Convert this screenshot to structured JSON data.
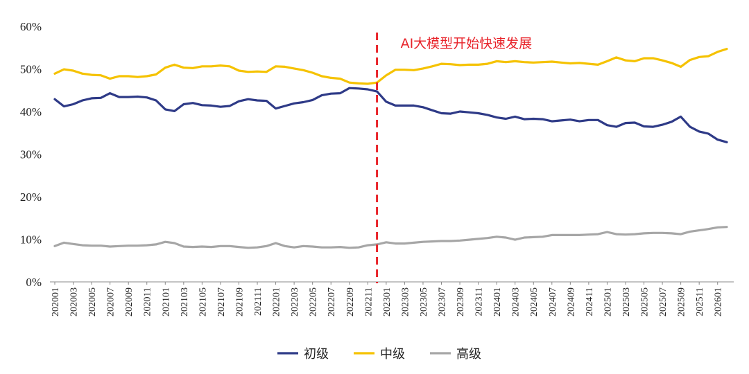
{
  "chart_data": {
    "type": "line",
    "title": "",
    "xlabel": "",
    "ylabel": "",
    "ylim": [
      0,
      60
    ],
    "yticks": [
      0,
      10,
      20,
      30,
      40,
      50,
      60
    ],
    "ytick_labels": [
      "0%",
      "10%",
      "20%",
      "30%",
      "40%",
      "50%",
      "60%"
    ],
    "grid": false,
    "legend_position": "bottom-center",
    "x": [
      "202001",
      "202002",
      "202003",
      "202004",
      "202005",
      "202006",
      "202007",
      "202008",
      "202009",
      "202010",
      "202011",
      "202012",
      "202101",
      "202102",
      "202103",
      "202104",
      "202105",
      "202106",
      "202107",
      "202108",
      "202109",
      "202110",
      "202111",
      "202112",
      "202201",
      "202202",
      "202203",
      "202204",
      "202205",
      "202206",
      "202207",
      "202208",
      "202209",
      "202210",
      "202211",
      "202212",
      "202301",
      "202302",
      "202303",
      "202304",
      "202305",
      "202306",
      "202307",
      "202308",
      "202309",
      "202310",
      "202311",
      "202312",
      "202401",
      "202402",
      "202403",
      "202404",
      "202405",
      "202406",
      "202407",
      "202408",
      "202409",
      "202410",
      "202411",
      "202412",
      "202501",
      "202502",
      "202503",
      "202504",
      "202505",
      "202506",
      "202507",
      "202508",
      "202509",
      "202510",
      "202511",
      "202512",
      "202601",
      "202602"
    ],
    "xtick_labels": [
      "202001",
      "202003",
      "202005",
      "202007",
      "202009",
      "202011",
      "202101",
      "202103",
      "202105",
      "202107",
      "202109",
      "202111",
      "202201",
      "202203",
      "202205",
      "202207",
      "202209",
      "202211",
      "202301",
      "202303",
      "202305",
      "202307",
      "202309",
      "202311",
      "202401",
      "202403",
      "202405",
      "202407",
      "202409",
      "202411",
      "202501",
      "202503",
      "202505",
      "202507",
      "202509",
      "202511",
      "202601"
    ],
    "series": [
      {
        "name": "初级",
        "color": "#2E3A87",
        "values": [
          42.9,
          41.2,
          41.7,
          42.6,
          43.1,
          43.2,
          44.3,
          43.4,
          43.4,
          43.5,
          43.3,
          42.6,
          40.5,
          40.1,
          41.7,
          42.0,
          41.5,
          41.4,
          41.1,
          41.3,
          42.4,
          42.9,
          42.6,
          42.5,
          40.7,
          41.3,
          41.9,
          42.2,
          42.7,
          43.8,
          44.2,
          44.3,
          45.5,
          45.4,
          45.2,
          44.7,
          42.3,
          41.4,
          41.4,
          41.4,
          41.0,
          40.3,
          39.6,
          39.5,
          40.0,
          39.8,
          39.6,
          39.2,
          38.6,
          38.3,
          38.8,
          38.2,
          38.3,
          38.2,
          37.7,
          37.9,
          38.1,
          37.7,
          38.0,
          38.0,
          36.8,
          36.4,
          37.3,
          37.4,
          36.5,
          36.4,
          36.9,
          37.6,
          38.8,
          36.4,
          35.3,
          34.8,
          33.4,
          32.8
        ]
      },
      {
        "name": "中级",
        "color": "#F5C200",
        "values": [
          48.9,
          49.9,
          49.6,
          48.9,
          48.6,
          48.5,
          47.7,
          48.3,
          48.3,
          48.1,
          48.3,
          48.7,
          50.3,
          51.0,
          50.3,
          50.2,
          50.6,
          50.6,
          50.8,
          50.6,
          49.6,
          49.3,
          49.4,
          49.3,
          50.6,
          50.5,
          50.1,
          49.7,
          49.1,
          48.3,
          47.9,
          47.7,
          46.8,
          46.6,
          46.5,
          46.8,
          48.5,
          49.8,
          49.8,
          49.7,
          50.1,
          50.6,
          51.2,
          51.1,
          50.9,
          51.0,
          51.0,
          51.2,
          51.8,
          51.6,
          51.8,
          51.6,
          51.5,
          51.6,
          51.7,
          51.5,
          51.3,
          51.4,
          51.2,
          51.0,
          51.8,
          52.7,
          52.0,
          51.8,
          52.5,
          52.5,
          52.0,
          51.4,
          50.5,
          52.1,
          52.8,
          53.0,
          54.0,
          54.7
        ]
      },
      {
        "name": "高级",
        "color": "#A6A6A6",
        "values": [
          8.4,
          9.2,
          8.9,
          8.6,
          8.5,
          8.5,
          8.3,
          8.4,
          8.5,
          8.5,
          8.6,
          8.8,
          9.4,
          9.1,
          8.3,
          8.2,
          8.3,
          8.2,
          8.4,
          8.4,
          8.2,
          8.0,
          8.1,
          8.4,
          9.1,
          8.4,
          8.1,
          8.4,
          8.3,
          8.1,
          8.1,
          8.2,
          8.0,
          8.1,
          8.6,
          8.8,
          9.3,
          9.0,
          9.0,
          9.2,
          9.4,
          9.5,
          9.6,
          9.6,
          9.7,
          9.9,
          10.1,
          10.3,
          10.6,
          10.4,
          9.9,
          10.4,
          10.5,
          10.6,
          11.0,
          11.0,
          11.0,
          11.0,
          11.1,
          11.2,
          11.7,
          11.2,
          11.1,
          11.2,
          11.4,
          11.5,
          11.5,
          11.4,
          11.2,
          11.8,
          12.1,
          12.4,
          12.8,
          12.9
        ]
      }
    ],
    "annotations": [
      {
        "text": "AI大模型开始快速发展",
        "x": "202212",
        "style": "dashed-vertical-line",
        "color": "#E8232A"
      }
    ]
  }
}
